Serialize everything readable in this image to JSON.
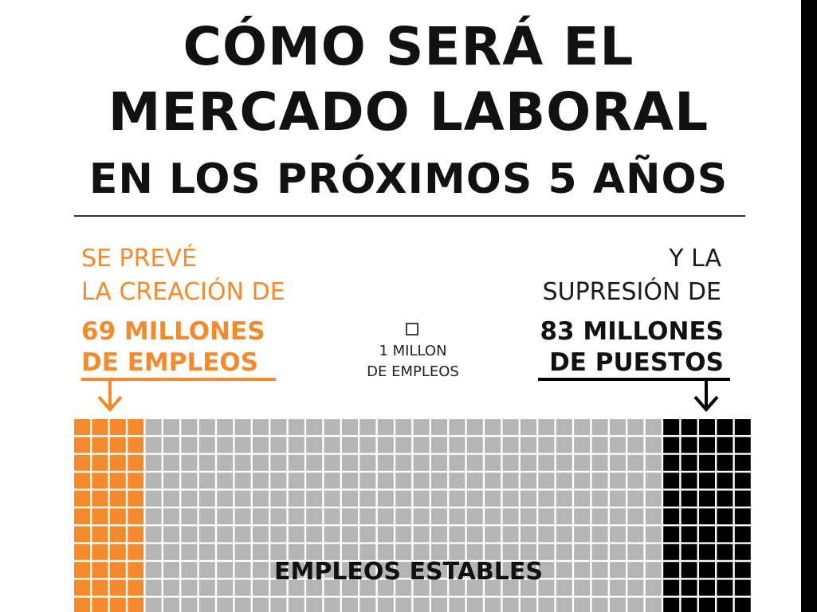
{
  "title": {
    "line1": "CÓMO SERÁ EL",
    "line2": "MERCADO LABORAL",
    "line3": "EN LOS PRÓXIMOS 5 AÑOS"
  },
  "left": {
    "intro_line1": "SE PREVÉ",
    "intro_line2": "LA CREACIÓN DE",
    "value_line1": "69 MILLONES",
    "value_line2": "DE EMPLEOS"
  },
  "right": {
    "intro_line1": "Y LA",
    "intro_line2": "SUPRESIÓN DE",
    "value_line1": "83 MILLONES",
    "value_line2": "DE PUESTOS"
  },
  "legend": {
    "line1": "1 MILLON",
    "line2": "DE EMPLEOS"
  },
  "colors": {
    "created": "#f58a2c",
    "stable": "#b5b5b5",
    "destroyed": "#000000",
    "title": "#111111"
  },
  "chart_data": {
    "type": "waffle",
    "unit": "1 MILLON DE EMPLEOS",
    "series": [
      {
        "name": "created",
        "value": 69
      },
      {
        "name": "destroyed",
        "value": 83
      }
    ],
    "annotations": [
      "EMPLEOS ESTABLES"
    ]
  }
}
